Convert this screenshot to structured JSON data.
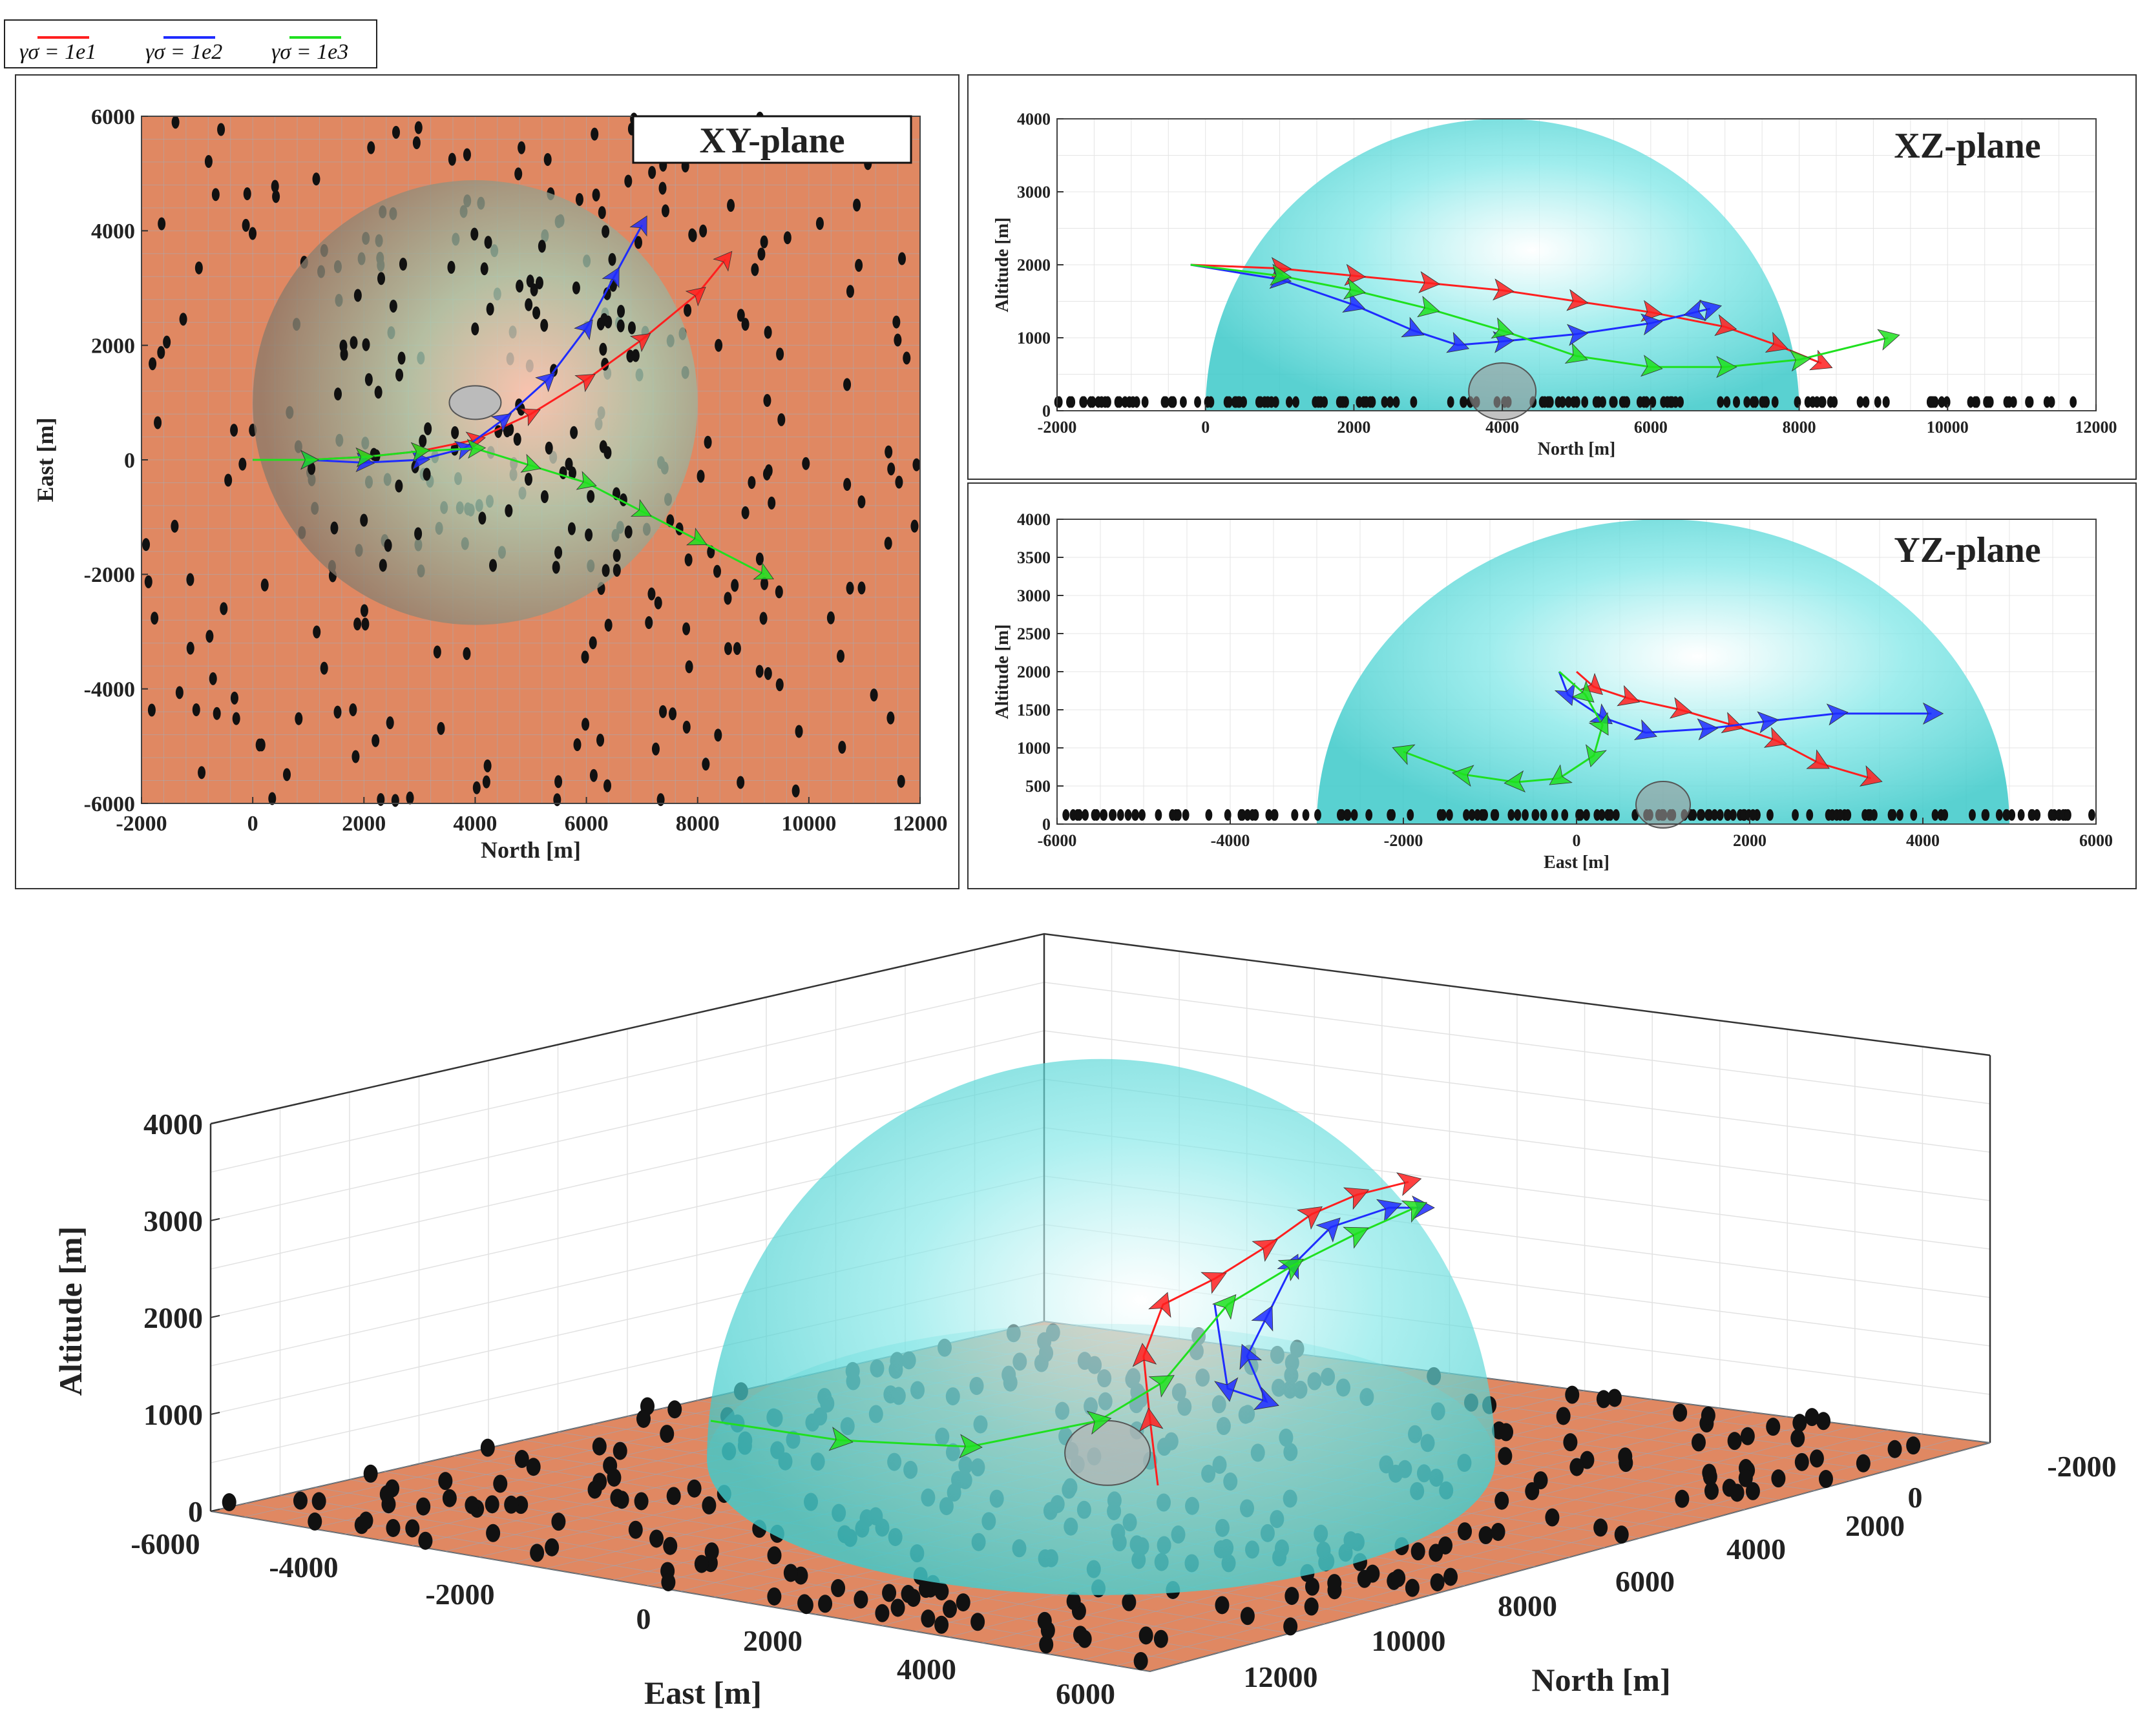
{
  "colors": {
    "ground": "#e08862",
    "dome": "#4fd6d6",
    "tree": "#111111",
    "series": [
      "#ff1f1f",
      "#1f2cff",
      "#1fe01f"
    ]
  },
  "legend": [
    {
      "label": "γσ = 1e1",
      "color": "#ff1f1f"
    },
    {
      "label": "γσ = 1e2",
      "color": "#1f2cff"
    },
    {
      "label": "γσ = 1e3",
      "color": "#1fe01f"
    }
  ],
  "chart_data": [
    {
      "type": "line",
      "title": "XY-plane",
      "xlabel": "North [m]",
      "ylabel": "East [m]",
      "xlim": [
        -2000,
        12000
      ],
      "ylim": [
        -6000,
        6000
      ],
      "xticks": [
        -2000,
        0,
        2000,
        4000,
        6000,
        8000,
        10000,
        12000
      ],
      "yticks": [
        -6000,
        -4000,
        -2000,
        0,
        2000,
        4000,
        6000
      ],
      "grid": true,
      "dome": {
        "center": [
          4000,
          1000
        ],
        "radius": 4000
      },
      "series": [
        {
          "name": "γσ = 1e1",
          "x": [
            0,
            1000,
            2000,
            3000,
            4000,
            5000,
            6000,
            7000,
            8000,
            8500
          ],
          "y": [
            0,
            0,
            50,
            150,
            350,
            800,
            1400,
            2100,
            2900,
            3500
          ]
        },
        {
          "name": "γσ = 1e2",
          "x": [
            0,
            1000,
            2000,
            3000,
            3800,
            4500,
            5300,
            6000,
            6500,
            7000
          ],
          "y": [
            0,
            0,
            -50,
            0,
            200,
            700,
            1400,
            2300,
            3200,
            4100
          ]
        },
        {
          "name": "γσ = 1e3",
          "x": [
            0,
            1000,
            2000,
            3000,
            4000,
            5000,
            6000,
            7000,
            8000,
            9200
          ],
          "y": [
            0,
            0,
            50,
            150,
            200,
            -100,
            -400,
            -900,
            -1400,
            -2000
          ]
        }
      ]
    },
    {
      "type": "line",
      "title": "XZ-plane",
      "xlabel": "North [m]",
      "ylabel": "Altitude [m]",
      "xlim": [
        -2000,
        12000
      ],
      "ylim": [
        0,
        4000
      ],
      "xticks": [
        -2000,
        0,
        2000,
        4000,
        6000,
        8000,
        10000,
        12000
      ],
      "yticks": [
        0,
        1000,
        2000,
        3000,
        4000
      ],
      "grid": true,
      "dome": {
        "center": 4000,
        "radius": 4000
      },
      "series": [
        {
          "name": "γσ = 1e1",
          "x": [
            -200,
            1000,
            2000,
            3000,
            4000,
            5000,
            6000,
            7000,
            7700,
            8300
          ],
          "y": [
            2000,
            1950,
            1850,
            1750,
            1650,
            1500,
            1350,
            1150,
            900,
            650
          ]
        },
        {
          "name": "γσ = 1e2",
          "x": [
            -200,
            1000,
            2000,
            2800,
            3400,
            4000,
            5000,
            6000,
            6800,
            6600
          ],
          "y": [
            2000,
            1800,
            1450,
            1100,
            900,
            950,
            1050,
            1200,
            1400,
            1350
          ]
        },
        {
          "name": "γσ = 1e3",
          "x": [
            -200,
            1000,
            2000,
            3000,
            4000,
            5000,
            6000,
            7000,
            8000,
            9200
          ],
          "y": [
            2000,
            1850,
            1650,
            1400,
            1100,
            750,
            600,
            600,
            700,
            1000
          ]
        }
      ]
    },
    {
      "type": "line",
      "title": "YZ-plane",
      "xlabel": "East [m]",
      "ylabel": "Altitude [m]",
      "xlim": [
        -6000,
        6000
      ],
      "ylim": [
        0,
        4000
      ],
      "xticks": [
        -6000,
        -4000,
        -2000,
        0,
        2000,
        4000,
        6000
      ],
      "yticks": [
        0,
        500,
        1000,
        1500,
        2000,
        2500,
        3000,
        3500,
        4000
      ],
      "grid": true,
      "dome": {
        "center": 1000,
        "radius": 4000
      },
      "series": [
        {
          "name": "γσ = 1e1",
          "x": [
            0,
            200,
            600,
            1200,
            1800,
            2300,
            2800,
            3400
          ],
          "y": [
            2000,
            1800,
            1650,
            1500,
            1300,
            1100,
            800,
            600
          ]
        },
        {
          "name": "γσ = 1e2",
          "x": [
            -200,
            -100,
            300,
            800,
            1500,
            2200,
            3000,
            4100
          ],
          "y": [
            2000,
            1700,
            1400,
            1200,
            1250,
            1350,
            1450,
            1450
          ]
        },
        {
          "name": "γσ = 1e3",
          "x": [
            -200,
            100,
            300,
            200,
            -200,
            -700,
            -1300,
            -2000
          ],
          "y": [
            2000,
            1700,
            1300,
            900,
            600,
            550,
            650,
            950
          ]
        }
      ]
    },
    {
      "type": "line",
      "title": "",
      "xlabel": "North [m]",
      "ylabel": "East [m]",
      "zlabel": "Altitude [m]",
      "xlim": [
        -2000,
        12000
      ],
      "ylim": [
        -6000,
        6000
      ],
      "zlim": [
        0,
        4000
      ],
      "xticks": [
        -2000,
        0,
        2000,
        4000,
        6000,
        8000,
        10000,
        12000
      ],
      "yticks": [
        -6000,
        -4000,
        -2000,
        0,
        2000,
        4000,
        6000
      ],
      "zticks": [
        0,
        1000,
        2000,
        3000,
        4000
      ],
      "grid": true
    }
  ]
}
